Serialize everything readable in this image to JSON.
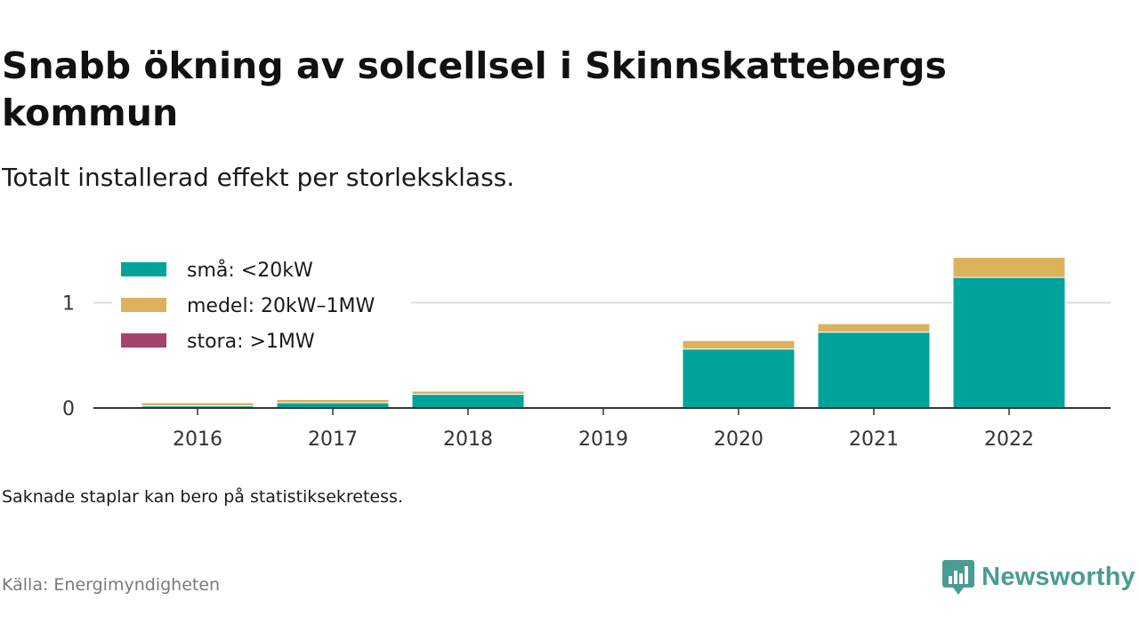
{
  "title": "Snabb ökning av solcellsel i Skinnskattebergs kommun",
  "subtitle": "Totalt installerad effekt per storleksklass.",
  "note": "Saknade staplar kan bero på statistiksekretess.",
  "source": "Källa: Energimyndigheten",
  "brand": {
    "name": "Newsworthy",
    "icon": "newsworthy-logo-icon",
    "color": "#4a9b93"
  },
  "chart_data": {
    "type": "bar",
    "stacked": true,
    "title": "Snabb ökning av solcellsel i Skinnskattebergs kommun",
    "subtitle": "Totalt installerad effekt per storleksklass.",
    "xlabel": "",
    "ylabel": "",
    "categories": [
      "2016",
      "2017",
      "2018",
      "2019",
      "2020",
      "2021",
      "2022"
    ],
    "series": [
      {
        "name": "små: <20kW",
        "color": "#00a39a",
        "values": [
          0.02,
          0.05,
          0.13,
          0,
          0.56,
          0.72,
          1.24
        ]
      },
      {
        "name": "medel: 20kW–1MW",
        "color": "#dcb15c",
        "values": [
          0.03,
          0.03,
          0.03,
          0,
          0.08,
          0.08,
          0.19
        ]
      },
      {
        "name": "stora: >1MW",
        "color": "#a64270",
        "values": [
          0,
          0,
          0,
          0,
          0,
          0,
          0
        ]
      }
    ],
    "yticks": [
      0,
      1
    ],
    "ylim": [
      0,
      1.45
    ],
    "grid": true,
    "legend_position": "top-left"
  }
}
